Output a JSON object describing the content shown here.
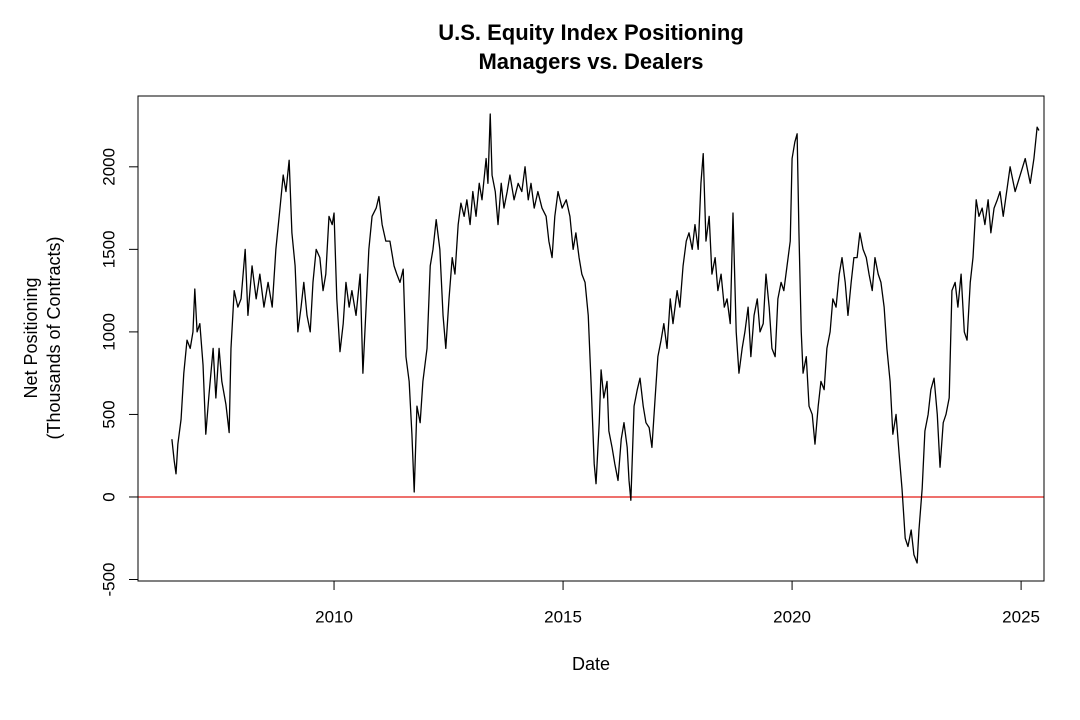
{
  "chart_data": {
    "type": "line",
    "title": "U.S. Equity Index Positioning",
    "subtitle": "Managers vs. Dealers",
    "xlabel": "Date",
    "ylabel": [
      "Net Positioning",
      "(Thousands of Contracts)"
    ],
    "color": "#000000",
    "reference_line": {
      "value": 0,
      "color": "#e8413c"
    },
    "xlim": [
      2005.72,
      2025.5
    ],
    "ylim": [
      -509,
      2429
    ],
    "xticks": [
      2010,
      2015,
      2020,
      2025
    ],
    "yticks": [
      -500,
      0,
      500,
      1000,
      1500,
      2000
    ],
    "x": [
      2006.46,
      2006.51,
      2006.55,
      2006.59,
      2006.66,
      2006.72,
      2006.79,
      2006.86,
      2006.92,
      2006.96,
      2007.01,
      2007.07,
      2007.14,
      2007.2,
      2007.27,
      2007.36,
      2007.42,
      2007.49,
      2007.55,
      2007.64,
      2007.71,
      2007.75,
      2007.82,
      2007.9,
      2007.97,
      2008.06,
      2008.12,
      2008.21,
      2008.3,
      2008.38,
      2008.47,
      2008.56,
      2008.65,
      2008.73,
      2008.82,
      2008.89,
      2008.95,
      2009.02,
      2009.08,
      2009.15,
      2009.21,
      2009.28,
      2009.34,
      2009.41,
      2009.48,
      2009.54,
      2009.61,
      2009.69,
      2009.76,
      2009.82,
      2009.89,
      2009.96,
      2010.0,
      2010.06,
      2010.13,
      2010.2,
      2010.26,
      2010.33,
      2010.39,
      2010.48,
      2010.57,
      2010.63,
      2010.7,
      2010.76,
      2010.83,
      2010.92,
      2010.98,
      2011.05,
      2011.13,
      2011.22,
      2011.31,
      2011.37,
      2011.44,
      2011.51,
      2011.57,
      2011.64,
      2011.7,
      2011.75,
      2011.81,
      2011.88,
      2011.94,
      2012.03,
      2012.1,
      2012.16,
      2012.23,
      2012.31,
      2012.38,
      2012.44,
      2012.51,
      2012.58,
      2012.64,
      2012.71,
      2012.77,
      2012.84,
      2012.9,
      2012.97,
      2013.03,
      2013.1,
      2013.17,
      2013.23,
      2013.32,
      2013.36,
      2013.41,
      2013.45,
      2013.52,
      2013.58,
      2013.65,
      2013.71,
      2013.78,
      2013.84,
      2013.93,
      2014.02,
      2014.1,
      2014.17,
      2014.24,
      2014.3,
      2014.37,
      2014.45,
      2014.54,
      2014.63,
      2014.69,
      2014.76,
      2014.82,
      2014.89,
      2014.98,
      2015.07,
      2015.15,
      2015.22,
      2015.28,
      2015.35,
      2015.41,
      2015.48,
      2015.55,
      2015.61,
      2015.68,
      2015.72,
      2015.79,
      2015.83,
      2015.89,
      2015.96,
      2016.0,
      2016.07,
      2016.13,
      2016.2,
      2016.27,
      2016.33,
      2016.4,
      2016.44,
      2016.48,
      2016.55,
      2016.62,
      2016.68,
      2016.75,
      2016.81,
      2016.88,
      2016.94,
      2017.01,
      2017.07,
      2017.14,
      2017.2,
      2017.27,
      2017.34,
      2017.4,
      2017.49,
      2017.55,
      2017.62,
      2017.69,
      2017.75,
      2017.82,
      2017.88,
      2017.95,
      2018.01,
      2018.06,
      2018.12,
      2018.19,
      2018.25,
      2018.32,
      2018.38,
      2018.45,
      2018.52,
      2018.58,
      2018.65,
      2018.71,
      2018.78,
      2018.84,
      2018.91,
      2018.97,
      2019.04,
      2019.1,
      2019.17,
      2019.24,
      2019.3,
      2019.37,
      2019.43,
      2019.5,
      2019.56,
      2019.63,
      2019.69,
      2019.76,
      2019.82,
      2019.89,
      2019.96,
      2020.0,
      2020.06,
      2020.11,
      2020.15,
      2020.2,
      2020.24,
      2020.31,
      2020.37,
      2020.44,
      2020.5,
      2020.57,
      2020.63,
      2020.7,
      2020.76,
      2020.83,
      2020.89,
      2020.96,
      2021.03,
      2021.09,
      2021.16,
      2021.22,
      2021.29,
      2021.35,
      2021.42,
      2021.48,
      2021.55,
      2021.62,
      2021.68,
      2021.75,
      2021.81,
      2021.88,
      2021.94,
      2022.01,
      2022.07,
      2022.14,
      2022.2,
      2022.27,
      2022.34,
      2022.4,
      2022.47,
      2022.53,
      2022.6,
      2022.66,
      2022.73,
      2022.77,
      2022.84,
      2022.9,
      2022.97,
      2023.03,
      2023.1,
      2023.17,
      2023.23,
      2023.3,
      2023.36,
      2023.43,
      2023.49,
      2023.56,
      2023.62,
      2023.69,
      2023.76,
      2023.82,
      2023.89,
      2023.95,
      2024.02,
      2024.08,
      2024.15,
      2024.21,
      2024.28,
      2024.34,
      2024.41,
      2024.48,
      2024.54,
      2024.61,
      2024.76,
      2024.87,
      2024.98,
      2025.09,
      2025.2,
      2025.28,
      2025.35,
      2025.39
    ],
    "values": [
      350,
      220,
      140,
      320,
      470,
      750,
      950,
      900,
      1000,
      1260,
      1000,
      1050,
      800,
      380,
      620,
      900,
      600,
      900,
      700,
      560,
      390,
      900,
      1250,
      1150,
      1200,
      1500,
      1100,
      1400,
      1200,
      1350,
      1150,
      1300,
      1150,
      1500,
      1750,
      1950,
      1850,
      2040,
      1600,
      1400,
      1000,
      1150,
      1300,
      1100,
      1000,
      1300,
      1500,
      1450,
      1250,
      1350,
      1700,
      1650,
      1720,
      1200,
      880,
      1050,
      1300,
      1150,
      1250,
      1100,
      1350,
      750,
      1150,
      1500,
      1700,
      1750,
      1820,
      1650,
      1550,
      1550,
      1400,
      1350,
      1300,
      1380,
      850,
      700,
      380,
      30,
      550,
      450,
      700,
      900,
      1400,
      1500,
      1680,
      1500,
      1100,
      900,
      1200,
      1450,
      1350,
      1650,
      1780,
      1700,
      1800,
      1650,
      1850,
      1700,
      1900,
      1800,
      2050,
      1900,
      2320,
      1950,
      1850,
      1650,
      1900,
      1750,
      1850,
      1950,
      1800,
      1900,
      1850,
      2000,
      1800,
      1900,
      1750,
      1850,
      1750,
      1700,
      1550,
      1450,
      1700,
      1850,
      1750,
      1800,
      1700,
      1500,
      1600,
      1450,
      1350,
      1300,
      1100,
      700,
      200,
      80,
      450,
      770,
      600,
      700,
      400,
      300,
      200,
      100,
      350,
      450,
      300,
      100,
      -20,
      550,
      650,
      720,
      550,
      450,
      420,
      300,
      600,
      850,
      950,
      1050,
      900,
      1200,
      1050,
      1250,
      1150,
      1400,
      1550,
      1600,
      1500,
      1650,
      1500,
      1900,
      2080,
      1550,
      1700,
      1350,
      1450,
      1250,
      1350,
      1150,
      1200,
      1050,
      1720,
      1000,
      750,
      900,
      1000,
      1150,
      850,
      1100,
      1200,
      1000,
      1050,
      1350,
      1150,
      900,
      850,
      1200,
      1300,
      1250,
      1400,
      1550,
      2050,
      2150,
      2200,
      1600,
      1000,
      750,
      850,
      550,
      500,
      320,
      550,
      700,
      650,
      900,
      1000,
      1200,
      1150,
      1350,
      1450,
      1300,
      1100,
      1300,
      1450,
      1450,
      1600,
      1500,
      1450,
      1350,
      1250,
      1450,
      1350,
      1300,
      1150,
      900,
      700,
      380,
      500,
      250,
      50,
      -250,
      -300,
      -200,
      -350,
      -400,
      -200,
      50,
      400,
      500,
      650,
      720,
      500,
      180,
      450,
      500,
      600,
      1250,
      1300,
      1150,
      1350,
      1000,
      950,
      1300,
      1450,
      1800,
      1700,
      1750,
      1650,
      1800,
      1600,
      1750,
      1800,
      1850,
      1700,
      2000,
      1850,
      1950,
      2050,
      1900,
      2050,
      2240,
      2220
    ]
  }
}
